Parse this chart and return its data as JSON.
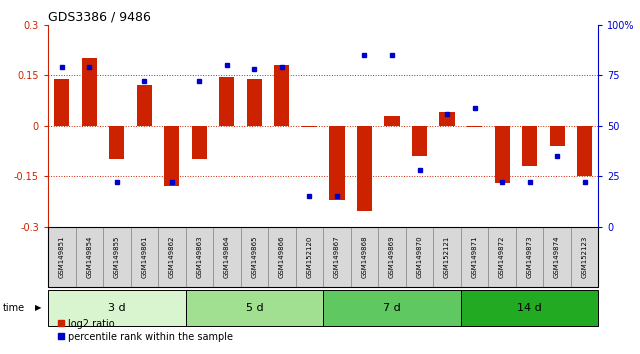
{
  "title": "GDS3386 / 9486",
  "samples": [
    "GSM149851",
    "GSM149854",
    "GSM149855",
    "GSM149861",
    "GSM149862",
    "GSM149863",
    "GSM149864",
    "GSM149865",
    "GSM149866",
    "GSM152120",
    "GSM149867",
    "GSM149868",
    "GSM149869",
    "GSM149870",
    "GSM152121",
    "GSM149871",
    "GSM149872",
    "GSM149873",
    "GSM149874",
    "GSM152123"
  ],
  "log2_ratio": [
    0.14,
    0.2,
    -0.1,
    0.12,
    -0.18,
    -0.1,
    0.145,
    0.14,
    0.18,
    -0.005,
    -0.22,
    -0.255,
    0.03,
    -0.09,
    0.04,
    -0.005,
    -0.17,
    -0.12,
    -0.06,
    -0.15
  ],
  "percentile": [
    79,
    79,
    22,
    72,
    22,
    72,
    80,
    78,
    79,
    15,
    15,
    85,
    85,
    28,
    56,
    59,
    22,
    22,
    35,
    22
  ],
  "groups": [
    {
      "label": "3 d",
      "start": 0,
      "end": 5,
      "color": "#d8f5d0"
    },
    {
      "label": "5 d",
      "start": 5,
      "end": 10,
      "color": "#a0e090"
    },
    {
      "label": "7 d",
      "start": 10,
      "end": 15,
      "color": "#60c860"
    },
    {
      "label": "14 d",
      "start": 15,
      "end": 20,
      "color": "#22aa22"
    }
  ],
  "ylim": [
    -0.3,
    0.3
  ],
  "y2lim": [
    0,
    100
  ],
  "bar_color": "#cc2200",
  "dot_color": "#0000cc",
  "hline_color": "#cc2200",
  "bg_color": "#ffffff",
  "label_bg": "#d8d8d8",
  "cell_border": "#888888"
}
